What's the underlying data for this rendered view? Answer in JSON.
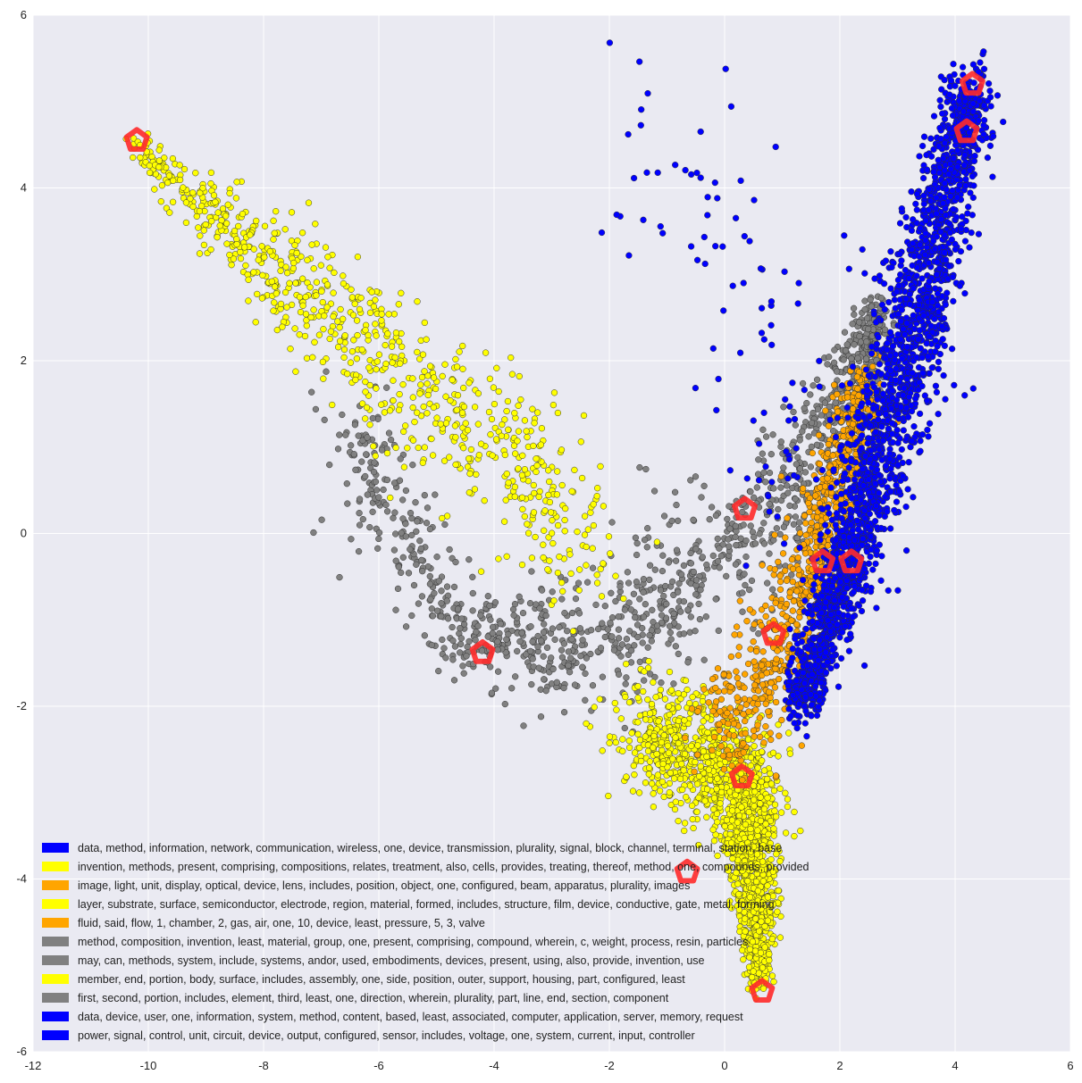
{
  "chart_data": {
    "type": "scatter",
    "title": "",
    "xlabel": "",
    "ylabel": "",
    "xlim": [
      -12,
      6
    ],
    "ylim": [
      -6,
      6
    ],
    "xticks": [
      "-12",
      "-10",
      "-8",
      "-6",
      "-4",
      "-2",
      "0",
      "2",
      "4",
      "6"
    ],
    "yticks": [
      "-6",
      "-4",
      "-2",
      "0",
      "2",
      "4",
      "6"
    ],
    "grid": true,
    "background": "#eaeaf2",
    "legend_position": "lower-left",
    "legend": [
      {
        "label": "data, method, information, network, communication, wireless, one, device, transmission, plurality, signal, block, channel, terminal, station, base",
        "color": "#0000ff"
      },
      {
        "label": "invention, methods, present, comprising, compositions, relates, treatment, also, cells, provides, treating, thereof, method, one, compounds, provided",
        "color": "#ffff00"
      },
      {
        "label": "image, light, unit, display, optical, device, lens, includes, position, object, one, configured, beam, apparatus, plurality, images",
        "color": "#ffa500"
      },
      {
        "label": "layer, substrate, surface, semiconductor, electrode, region, material, formed, includes, structure, film, device, conductive, gate, metal, forming",
        "color": "#ffff00"
      },
      {
        "label": "fluid, said, flow, 1, chamber, 2, gas, air, one, 10, device, least, pressure, 5, 3, valve",
        "color": "#ffa500"
      },
      {
        "label": "method, composition, invention, least, material, group, one, present, comprising, compound, wherein, c, weight, process, resin, particles",
        "color": "#808080"
      },
      {
        "label": "may, can, methods, system, include, systems, andor, used, embodiments, devices, present, using, also, provide, invention, use",
        "color": "#808080"
      },
      {
        "label": "member, end, portion, body, surface, includes, assembly, one, side, position, outer, support, housing, part, configured, least",
        "color": "#ffff00"
      },
      {
        "label": "first, second, portion, includes, element, third, least, one, direction, wherein, plurality, part, line, end, section, component",
        "color": "#808080"
      },
      {
        "label": "data, device, user, one, information, system, method, content, based, least, associated, computer, application, server, memory, request",
        "color": "#0000ff"
      },
      {
        "label": "power, signal, control, unit, circuit, device, output, configured, sensor, includes, voltage, one, system, current, input, controller",
        "color": "#0000ff"
      }
    ],
    "highlighted_points": [
      {
        "x": 4.3,
        "y": 5.2
      },
      {
        "x": 4.2,
        "y": 4.65
      },
      {
        "x": -10.2,
        "y": 4.55
      },
      {
        "x": 0.35,
        "y": 0.28
      },
      {
        "x": 1.7,
        "y": -0.33
      },
      {
        "x": 2.2,
        "y": -0.33
      },
      {
        "x": 0.85,
        "y": -1.17
      },
      {
        "x": -4.2,
        "y": -1.38
      },
      {
        "x": 0.3,
        "y": -2.82
      },
      {
        "x": -0.65,
        "y": -3.92
      },
      {
        "x": 0.65,
        "y": -5.3
      }
    ],
    "highlight_color": "#ff2a2a",
    "clusters": [
      {
        "name": "blue",
        "color": "#0000ff",
        "n": 2300,
        "path": [
          [
            4.3,
            5.15
          ],
          [
            3.3,
            2.5
          ],
          [
            2.3,
            0.0
          ],
          [
            1.3,
            -2.0
          ]
        ],
        "spread": [
          0.33,
          0.55,
          0.45,
          0.25
        ]
      },
      {
        "name": "blue-sparse",
        "color": "#0000ff",
        "n": 100,
        "path": [
          [
            -1.5,
            4.6
          ],
          [
            0.5,
            3.2
          ],
          [
            1.5,
            1.5
          ],
          [
            0.5,
            0.0
          ]
        ],
        "spread": [
          1.0,
          1.2,
          0.9,
          0.7
        ]
      },
      {
        "name": "yellow-left",
        "color": "#ffff00",
        "n": 780,
        "path": [
          [
            -10.2,
            4.45
          ],
          [
            -8.0,
            3.2
          ],
          [
            -6.0,
            2.1
          ],
          [
            -4.0,
            1.0
          ],
          [
            -2.5,
            0.0
          ]
        ],
        "spread": [
          0.15,
          0.45,
          0.7,
          0.8,
          0.8
        ]
      },
      {
        "name": "yellow-bottom",
        "color": "#ffff00",
        "n": 1700,
        "path": [
          [
            -1.5,
            -2.3
          ],
          [
            0.3,
            -2.8
          ],
          [
            0.5,
            -3.8
          ],
          [
            0.6,
            -5.2
          ]
        ],
        "spread": [
          0.6,
          0.55,
          0.35,
          0.13
        ]
      },
      {
        "name": "gray",
        "color": "#808080",
        "n": 1250,
        "path": [
          [
            -6.5,
            1.2
          ],
          [
            -4.5,
            -1.3
          ],
          [
            -2.0,
            -1.3
          ],
          [
            0.0,
            -0.3
          ],
          [
            1.8,
            1.2
          ],
          [
            2.7,
            2.6
          ]
        ],
        "spread": [
          0.7,
          0.35,
          0.7,
          0.8,
          0.45,
          0.25
        ]
      },
      {
        "name": "orange",
        "color": "#ffa500",
        "n": 850,
        "path": [
          [
            0.0,
            -2.4
          ],
          [
            1.2,
            -1.0
          ],
          [
            1.9,
            0.4
          ],
          [
            2.5,
            1.8
          ]
        ],
        "spread": [
          0.6,
          0.5,
          0.4,
          0.3
        ]
      }
    ]
  }
}
